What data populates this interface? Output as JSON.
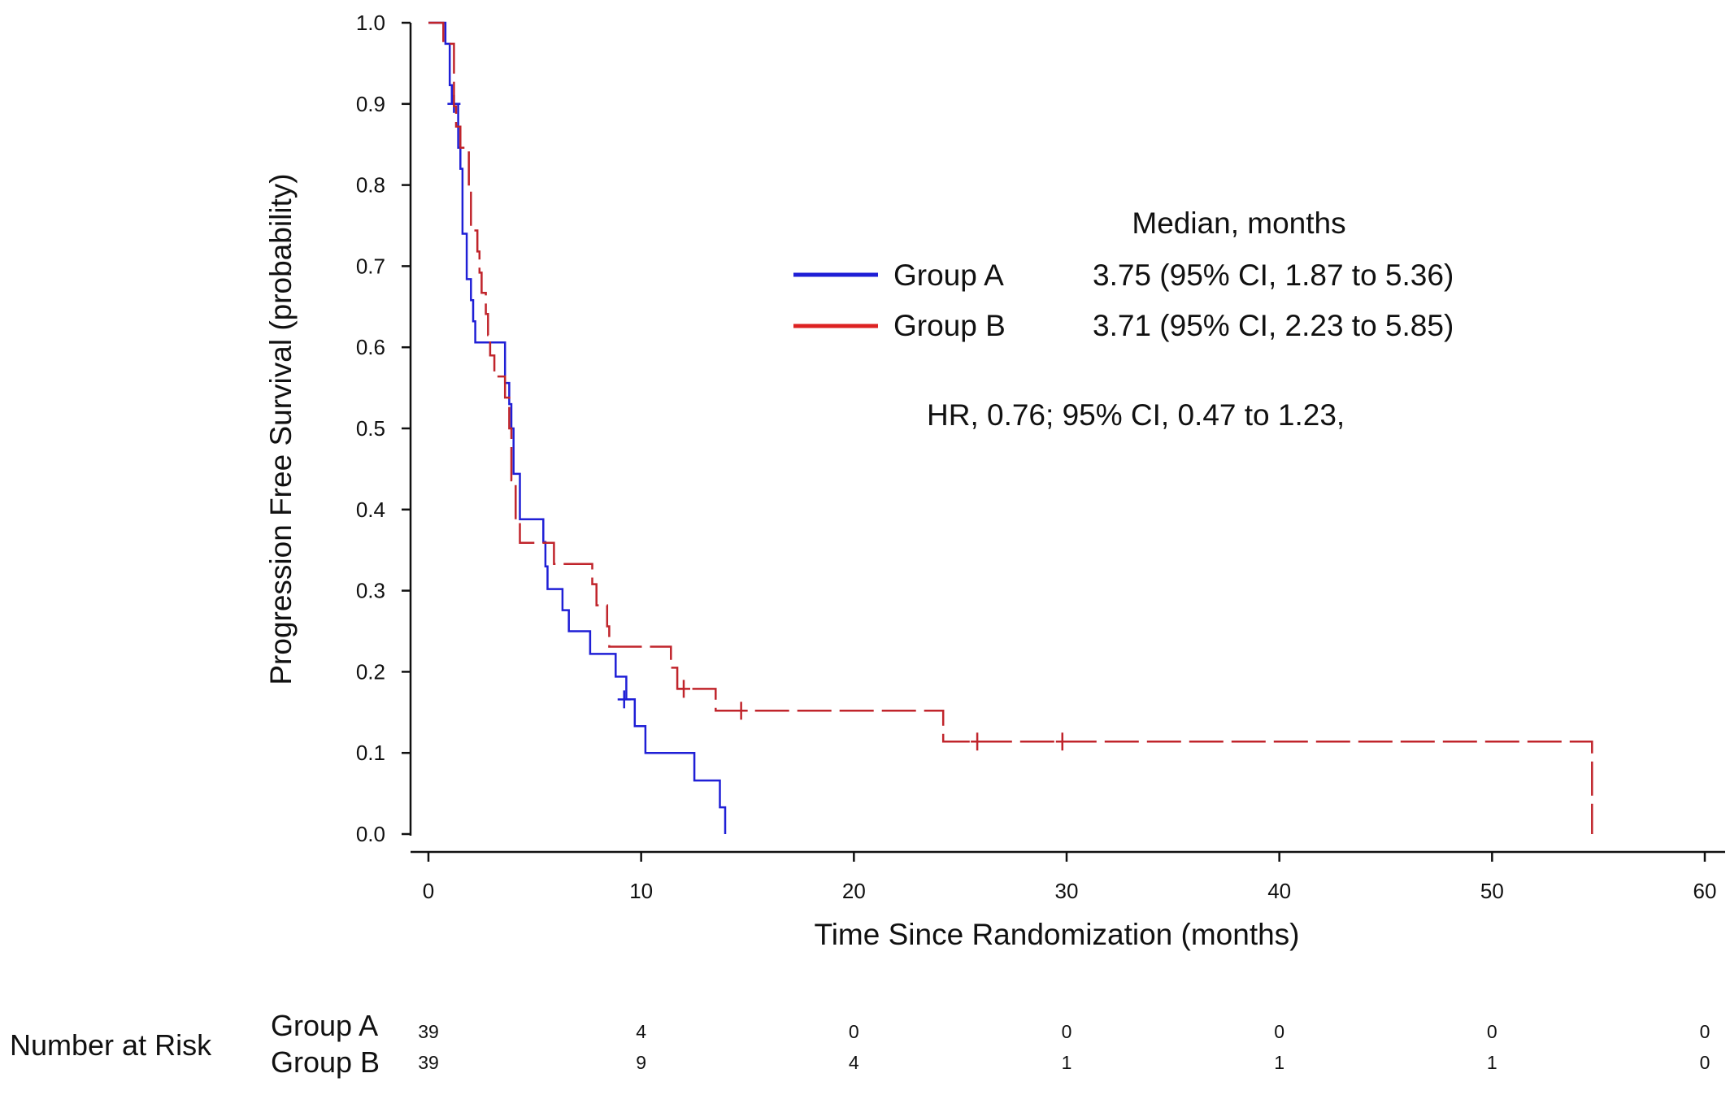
{
  "chart_data": {
    "type": "line",
    "subtype": "kaplan-meier",
    "xlabel": "Time Since Randomization (months)",
    "ylabel": "Progression Free Survival (probability)",
    "xlim": [
      0,
      60
    ],
    "ylim": [
      0.0,
      1.0
    ],
    "x_ticks": [
      "0",
      "10",
      "20",
      "30",
      "40",
      "50",
      "60"
    ],
    "y_ticks": [
      "0.0",
      "0.1",
      "0.2",
      "0.3",
      "0.4",
      "0.5",
      "0.6",
      "0.7",
      "0.8",
      "0.9",
      "1.0"
    ],
    "legend": {
      "header": "Median, months",
      "entries": [
        {
          "name": "Group A",
          "median": "3.75 (95% CI, 1.87 to 5.36)"
        },
        {
          "name": "Group B",
          "median": "3.71 (95% CI, 2.23 to 5.85)"
        }
      ],
      "hr_text": "HR, 0.76; 95% CI, 0.47 to 1.23,"
    },
    "series": [
      {
        "name": "Group A",
        "color": "#1f1fd6",
        "dash": "solid",
        "steps": [
          [
            0,
            1.0
          ],
          [
            0.5,
            1.0
          ],
          [
            0.8,
            0.974
          ],
          [
            1.0,
            0.923
          ],
          [
            1.1,
            0.9
          ],
          [
            1.3,
            0.9
          ],
          [
            1.4,
            0.846
          ],
          [
            1.5,
            0.82
          ],
          [
            1.6,
            0.74
          ],
          [
            1.8,
            0.684
          ],
          [
            2.0,
            0.658
          ],
          [
            2.1,
            0.632
          ],
          [
            2.2,
            0.606
          ],
          [
            3.5,
            0.606
          ],
          [
            3.6,
            0.556
          ],
          [
            3.8,
            0.53
          ],
          [
            3.9,
            0.5
          ],
          [
            4.0,
            0.444
          ],
          [
            4.2,
            0.444
          ],
          [
            4.3,
            0.388
          ],
          [
            5.3,
            0.388
          ],
          [
            5.4,
            0.36
          ],
          [
            5.5,
            0.33
          ],
          [
            5.6,
            0.302
          ],
          [
            6.2,
            0.302
          ],
          [
            6.3,
            0.276
          ],
          [
            6.6,
            0.25
          ],
          [
            7.5,
            0.25
          ],
          [
            7.6,
            0.222
          ],
          [
            8.7,
            0.222
          ],
          [
            8.8,
            0.194
          ],
          [
            9.2,
            0.194
          ],
          [
            9.3,
            0.166
          ],
          [
            9.6,
            0.166
          ],
          [
            9.7,
            0.133
          ],
          [
            10.1,
            0.133
          ],
          [
            10.2,
            0.1
          ],
          [
            12.4,
            0.1
          ],
          [
            12.5,
            0.066
          ],
          [
            13.6,
            0.066
          ],
          [
            13.7,
            0.033
          ],
          [
            13.9,
            0.033
          ],
          [
            13.95,
            0.0
          ]
        ],
        "censor": [
          [
            1.2,
            0.9
          ],
          [
            9.2,
            0.166
          ]
        ]
      },
      {
        "name": "Group B",
        "color": "#c0242b",
        "dash": "dashed",
        "steps": [
          [
            0,
            1.0
          ],
          [
            0.6,
            1.0
          ],
          [
            0.7,
            0.974
          ],
          [
            1.1,
            0.974
          ],
          [
            1.2,
            0.897
          ],
          [
            1.3,
            0.872
          ],
          [
            1.5,
            0.846
          ],
          [
            1.8,
            0.846
          ],
          [
            1.9,
            0.795
          ],
          [
            2.0,
            0.744
          ],
          [
            2.3,
            0.718
          ],
          [
            2.4,
            0.692
          ],
          [
            2.5,
            0.667
          ],
          [
            2.7,
            0.641
          ],
          [
            2.8,
            0.615
          ],
          [
            2.9,
            0.59
          ],
          [
            3.0,
            0.59
          ],
          [
            3.1,
            0.564
          ],
          [
            3.5,
            0.564
          ],
          [
            3.6,
            0.538
          ],
          [
            3.8,
            0.5
          ],
          [
            3.9,
            0.436
          ],
          [
            4.1,
            0.385
          ],
          [
            4.3,
            0.359
          ],
          [
            5.8,
            0.359
          ],
          [
            5.9,
            0.333
          ],
          [
            7.6,
            0.333
          ],
          [
            7.7,
            0.308
          ],
          [
            7.9,
            0.282
          ],
          [
            8.3,
            0.282
          ],
          [
            8.4,
            0.256
          ],
          [
            8.5,
            0.231
          ],
          [
            11.3,
            0.231
          ],
          [
            11.4,
            0.205
          ],
          [
            11.6,
            0.205
          ],
          [
            11.7,
            0.179
          ],
          [
            13.4,
            0.179
          ],
          [
            13.5,
            0.152
          ],
          [
            24.1,
            0.152
          ],
          [
            24.2,
            0.114
          ],
          [
            54.6,
            0.114
          ],
          [
            54.7,
            0.0
          ]
        ],
        "censor": [
          [
            12.0,
            0.179
          ],
          [
            14.7,
            0.152
          ],
          [
            25.8,
            0.114
          ],
          [
            29.8,
            0.114
          ]
        ]
      }
    ]
  },
  "risk_table": {
    "title": "Number at Risk",
    "rows": [
      {
        "name": "Group A",
        "values": [
          "39",
          "4",
          "0",
          "0",
          "0",
          "0",
          "0"
        ]
      },
      {
        "name": "Group B",
        "values": [
          "39",
          "9",
          "4",
          "1",
          "1",
          "1",
          "0"
        ]
      }
    ]
  }
}
